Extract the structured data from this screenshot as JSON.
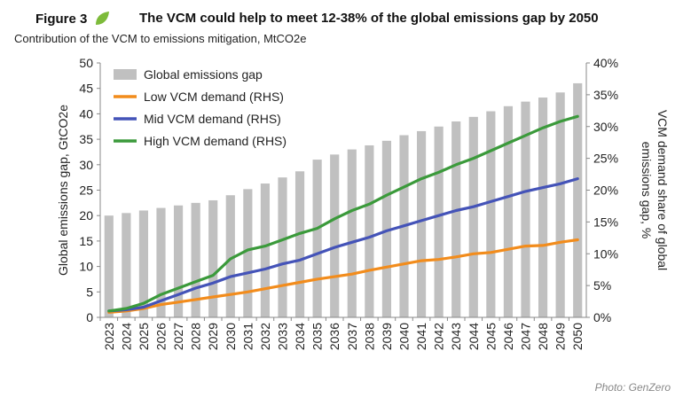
{
  "header": {
    "figure_label": "Figure 3",
    "title": "The VCM could help to meet 12-38% of the global emissions gap by 2050",
    "subtitle": "Contribution of the VCM to emissions mitigation, MtCO2e"
  },
  "credit": "Photo: GenZero",
  "colors": {
    "bars": "#c0c0c0",
    "low": "#f28c1c",
    "mid": "#4453b8",
    "high": "#3b9a3b",
    "leaf": "#7dbb3a"
  },
  "icons": {
    "leaf": "leaf-icon"
  },
  "chart_data": {
    "type": "bar+line",
    "categories": [
      "2023",
      "2024",
      "2025",
      "2026",
      "2027",
      "2028",
      "2029",
      "2030",
      "2031",
      "2032",
      "2033",
      "2034",
      "2035",
      "2036",
      "2037",
      "2038",
      "2039",
      "2040",
      "2041",
      "2042",
      "2043",
      "2044",
      "2045",
      "2046",
      "2047",
      "2048",
      "2049",
      "2050"
    ],
    "bar_series": {
      "name": "Global emissions gap",
      "axis": "left",
      "values": [
        20,
        20.5,
        21,
        21.5,
        22,
        22.5,
        23,
        24,
        25.2,
        26.3,
        27.5,
        28.7,
        31,
        32,
        33,
        33.8,
        34.7,
        35.8,
        36.6,
        37.5,
        38.5,
        39.4,
        40.5,
        41.5,
        42.4,
        43.2,
        44.2,
        46
      ]
    },
    "series": [
      {
        "name": "Low VCM demand (RHS)",
        "axis": "right",
        "values": [
          0.8,
          1.0,
          1.4,
          2.0,
          2.4,
          2.8,
          3.2,
          3.6,
          4.0,
          4.5,
          5.0,
          5.5,
          6.0,
          6.4,
          6.8,
          7.4,
          7.9,
          8.4,
          8.9,
          9.1,
          9.5,
          10.0,
          10.2,
          10.7,
          11.2,
          11.3,
          11.8,
          12.2
        ]
      },
      {
        "name": "Mid VCM demand (RHS)",
        "axis": "right",
        "values": [
          1.0,
          1.2,
          1.6,
          2.6,
          3.6,
          4.6,
          5.4,
          6.4,
          7.0,
          7.6,
          8.4,
          9.0,
          10.0,
          11.0,
          11.8,
          12.6,
          13.6,
          14.4,
          15.2,
          16.0,
          16.8,
          17.4,
          18.2,
          19.0,
          19.8,
          20.4,
          21.0,
          21.8
        ]
      },
      {
        "name": "High VCM demand (RHS)",
        "axis": "right",
        "values": [
          1.0,
          1.4,
          2.2,
          3.6,
          4.6,
          5.6,
          6.6,
          9.2,
          10.6,
          11.2,
          12.2,
          13.2,
          14.0,
          15.5,
          16.8,
          17.8,
          19.2,
          20.5,
          21.8,
          22.8,
          24.0,
          25.0,
          26.2,
          27.4,
          28.6,
          29.8,
          30.8,
          31.6
        ]
      }
    ],
    "legend": [
      "Global emissions gap",
      "Low VCM demand (RHS)",
      "Mid VCM demand (RHS)",
      "High VCM demand (RHS)"
    ],
    "legend_position": "top-left",
    "ylabel_left": "Global emissions gap, GtCO2e",
    "ylabel_right": "VCM demand share of global emissions gap, %",
    "ylim_left": [
      0,
      50
    ],
    "yticks_left": [
      "0",
      "5",
      "10",
      "15",
      "20",
      "25",
      "30",
      "35",
      "40",
      "45",
      "50"
    ],
    "ylim_right": [
      0,
      40
    ],
    "yticks_right": [
      "0%",
      "5%",
      "10%",
      "15%",
      "20%",
      "25%",
      "30%",
      "35%",
      "40%"
    ],
    "grid": false
  }
}
